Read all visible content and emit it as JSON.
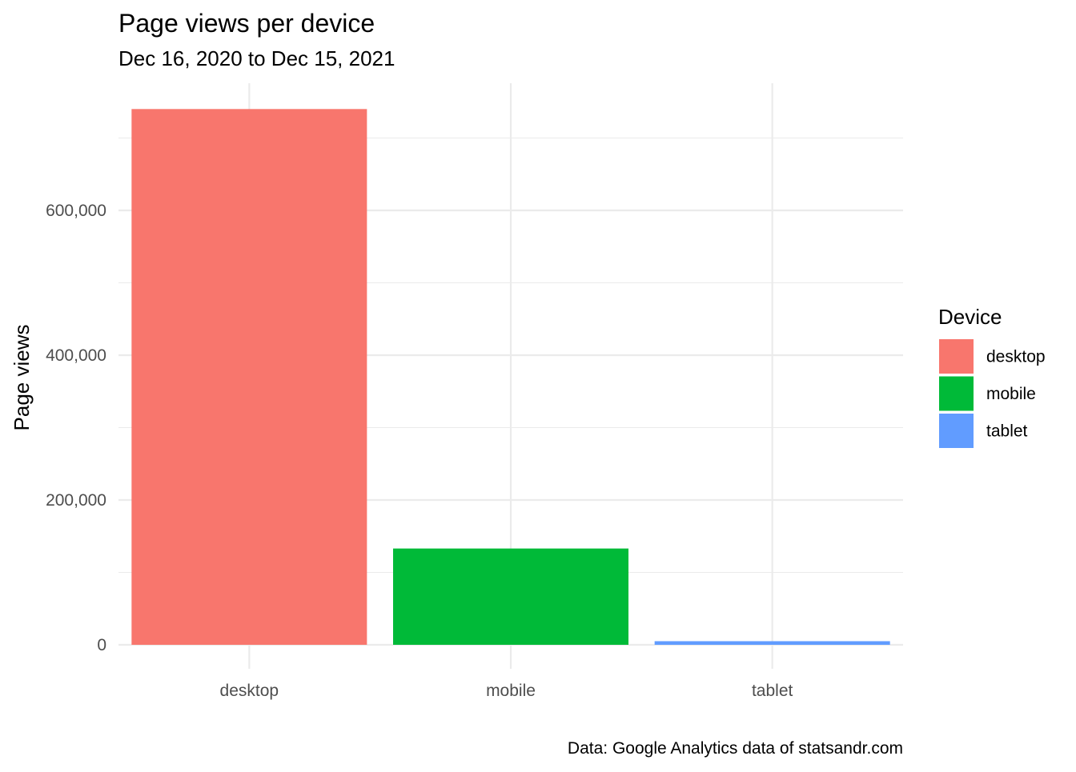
{
  "chart_data": {
    "type": "bar",
    "title": "Page views per device",
    "subtitle": "Dec 16, 2020 to Dec 15, 2021",
    "caption": "Data: Google Analytics data of statsandr.com",
    "xlabel": "",
    "ylabel": "Page views",
    "categories": [
      "desktop",
      "mobile",
      "tablet"
    ],
    "values": [
      740000,
      133000,
      5000
    ],
    "colors": [
      "#F8766D",
      "#00BA38",
      "#619CFF"
    ],
    "ylim": [
      0,
      740000
    ],
    "yticks": [
      0,
      200000,
      400000,
      600000
    ],
    "ytick_labels": [
      "0",
      "200,000",
      "400,000",
      "600,000"
    ],
    "grid": true,
    "legend": {
      "title": "Device",
      "position": "right",
      "entries": [
        "desktop",
        "mobile",
        "tablet"
      ]
    }
  }
}
